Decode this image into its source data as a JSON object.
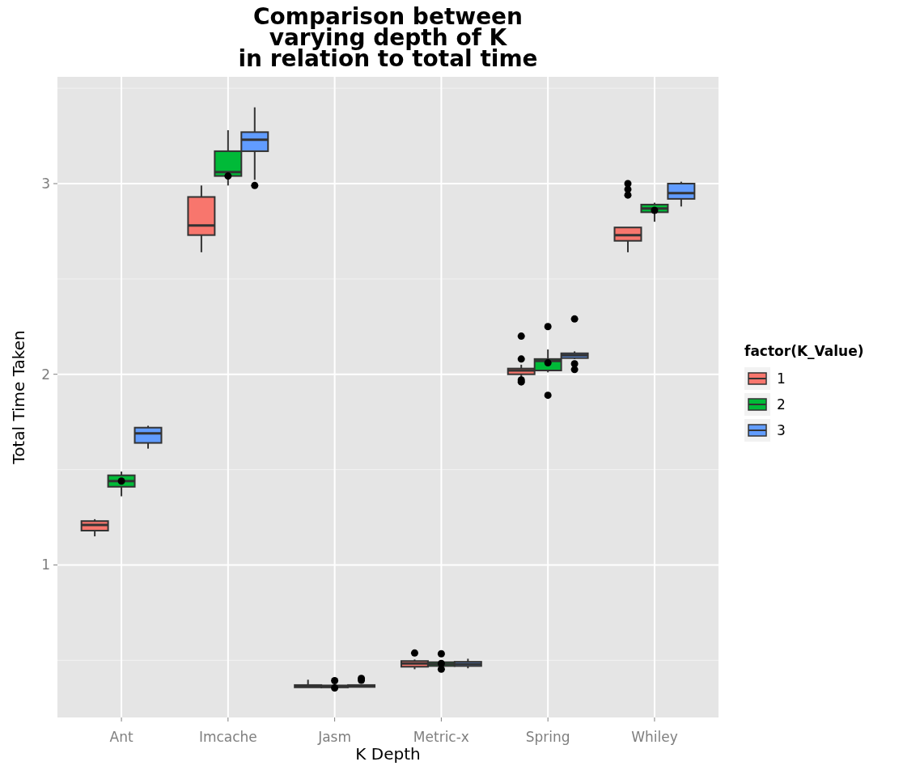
{
  "chart_data": {
    "type": "box",
    "title": "Comparison between\nvarying depth of K\nin relation to total time",
    "xlabel": "K Depth",
    "ylabel": "Total Time Taken",
    "legend_title": "factor(K_Value)",
    "legend": "right",
    "grid": true,
    "categories": [
      "Ant",
      "Imcache",
      "Jasm",
      "Metric-x",
      "Spring",
      "Whiley"
    ],
    "ylim": [
      0.2,
      3.56
    ],
    "yticks": [
      1,
      2,
      3
    ],
    "series": [
      {
        "name": "1",
        "color": "#f8766d",
        "boxes": [
          {
            "low": 1.15,
            "q1": 1.18,
            "median": 1.21,
            "q3": 1.23,
            "high": 1.24
          },
          {
            "low": 2.64,
            "q1": 2.73,
            "median": 2.78,
            "q3": 2.93,
            "high": 2.99
          },
          {
            "low": 0.358,
            "q1": 0.358,
            "median": 0.364,
            "q3": 0.37,
            "high": 0.398
          },
          {
            "low": 0.453,
            "q1": 0.466,
            "median": 0.483,
            "q3": 0.496,
            "high": 0.504,
            "outliers": [
              0.538
            ]
          },
          {
            "low": 1.98,
            "q1": 2.0,
            "median": 2.02,
            "q3": 2.03,
            "high": 2.05,
            "outliers": [
              2.2,
              2.08,
              1.97,
              1.96
            ]
          },
          {
            "low": 2.64,
            "q1": 2.7,
            "median": 2.73,
            "q3": 2.77,
            "high": 2.77,
            "outliers": [
              3.0,
              2.97,
              2.94
            ]
          }
        ]
      },
      {
        "name": "2",
        "color": "#00ba38",
        "boxes": [
          {
            "low": 1.36,
            "q1": 1.41,
            "median": 1.44,
            "q3": 1.47,
            "high": 1.49,
            "outliers": [
              1.44
            ]
          },
          {
            "low": 2.99,
            "q1": 3.04,
            "median": 3.06,
            "q3": 3.17,
            "high": 3.28,
            "outliers": [
              3.04
            ]
          },
          {
            "low": 0.358,
            "q1": 0.358,
            "median": 0.362,
            "q3": 0.368,
            "high": 0.372,
            "outliers": [
              0.393,
              0.355
            ]
          },
          {
            "low": 0.465,
            "q1": 0.47,
            "median": 0.48,
            "q3": 0.49,
            "high": 0.495,
            "outliers": [
              0.534,
              0.483,
              0.453
            ]
          },
          {
            "low": 2.01,
            "q1": 2.02,
            "median": 2.07,
            "q3": 2.08,
            "high": 2.13,
            "outliers": [
              2.25,
              2.06,
              1.89
            ]
          },
          {
            "low": 2.8,
            "q1": 2.85,
            "median": 2.87,
            "q3": 2.89,
            "high": 2.9,
            "outliers": [
              2.86
            ]
          }
        ]
      },
      {
        "name": "3",
        "color": "#619cff",
        "boxes": [
          {
            "low": 1.61,
            "q1": 1.64,
            "median": 1.69,
            "q3": 1.72,
            "high": 1.73
          },
          {
            "low": 3.02,
            "q1": 3.17,
            "median": 3.23,
            "q3": 3.27,
            "high": 3.4,
            "outliers": [
              2.99
            ]
          },
          {
            "low": 0.36,
            "q1": 0.36,
            "median": 0.365,
            "q3": 0.37,
            "high": 0.37,
            "outliers": [
              0.405,
              0.395
            ]
          },
          {
            "low": 0.458,
            "q1": 0.47,
            "median": 0.48,
            "q3": 0.492,
            "high": 0.508
          },
          {
            "low": 2.08,
            "q1": 2.085,
            "median": 2.1,
            "q3": 2.11,
            "high": 2.12,
            "outliers": [
              2.29,
              2.055,
              2.025
            ]
          },
          {
            "low": 2.88,
            "q1": 2.92,
            "median": 2.95,
            "q3": 3.0,
            "high": 3.01
          }
        ]
      }
    ]
  }
}
